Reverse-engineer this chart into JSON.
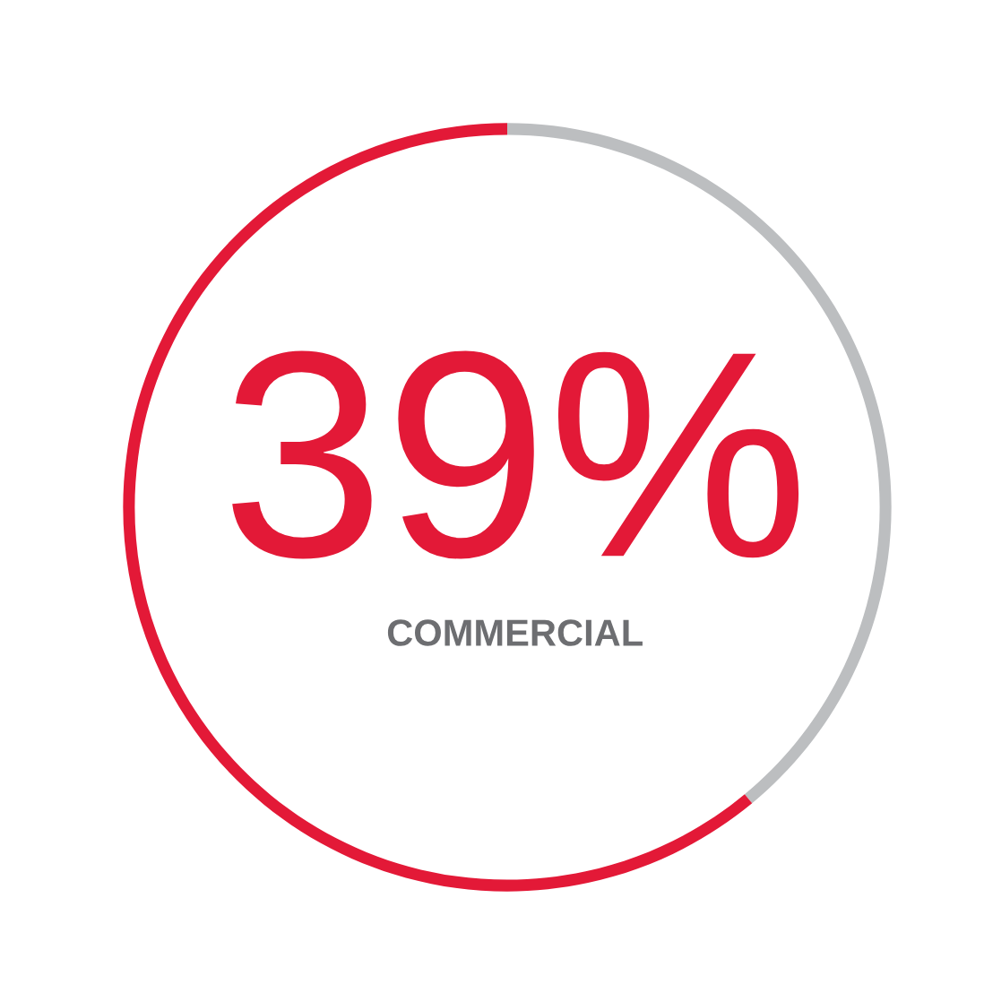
{
  "chart_data": {
    "type": "donut",
    "categories": [
      null,
      null
    ],
    "values": [
      39,
      61
    ],
    "colors": [
      "#bcbec0",
      "#e31937"
    ],
    "value_labels": [
      "39%",
      null
    ],
    "annotations": [
      "COMMERCIAL"
    ]
  }
}
